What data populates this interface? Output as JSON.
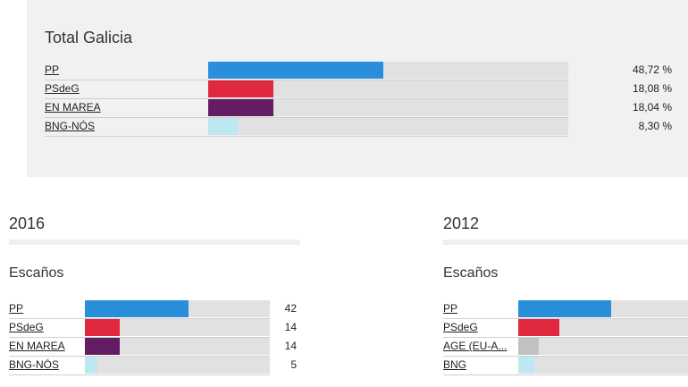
{
  "chart_data": [
    {
      "type": "bar",
      "title": "Total Galicia",
      "categories": [
        "PP",
        "PSdeG",
        "EN MAREA",
        "BNG-NÓS"
      ],
      "values": [
        48.72,
        18.08,
        18.04,
        8.3
      ],
      "value_labels": [
        "48,72 %",
        "18,08 %",
        "18,04 %",
        "8,30 %"
      ],
      "colors": [
        "#2a8fdb",
        "#e0283f",
        "#641c63",
        "#bde7f1"
      ],
      "xlim": [
        0,
        100
      ]
    },
    {
      "type": "bar",
      "title": "2016",
      "subtitle": "Escaños",
      "categories": [
        "PP",
        "PSdeG",
        "EN MAREA",
        "BNG-NÓS"
      ],
      "values": [
        42,
        14,
        14,
        5
      ],
      "value_labels": [
        "42",
        "14",
        "14",
        "5"
      ],
      "colors": [
        "#2a8fdb",
        "#e0283f",
        "#641c63",
        "#bde7f1"
      ],
      "xlim": [
        0,
        75
      ]
    },
    {
      "type": "bar",
      "title": "2012",
      "subtitle": "Escaños",
      "categories": [
        "PP",
        "PSdeG",
        "AGE (EU-A...",
        "BNG"
      ],
      "values": [
        41,
        18,
        9,
        7
      ],
      "value_labels": [],
      "colors": [
        "#2a8fdb",
        "#e0283f",
        "#c1c1c1",
        "#bde7f1"
      ],
      "xlim": [
        0,
        75
      ]
    }
  ]
}
